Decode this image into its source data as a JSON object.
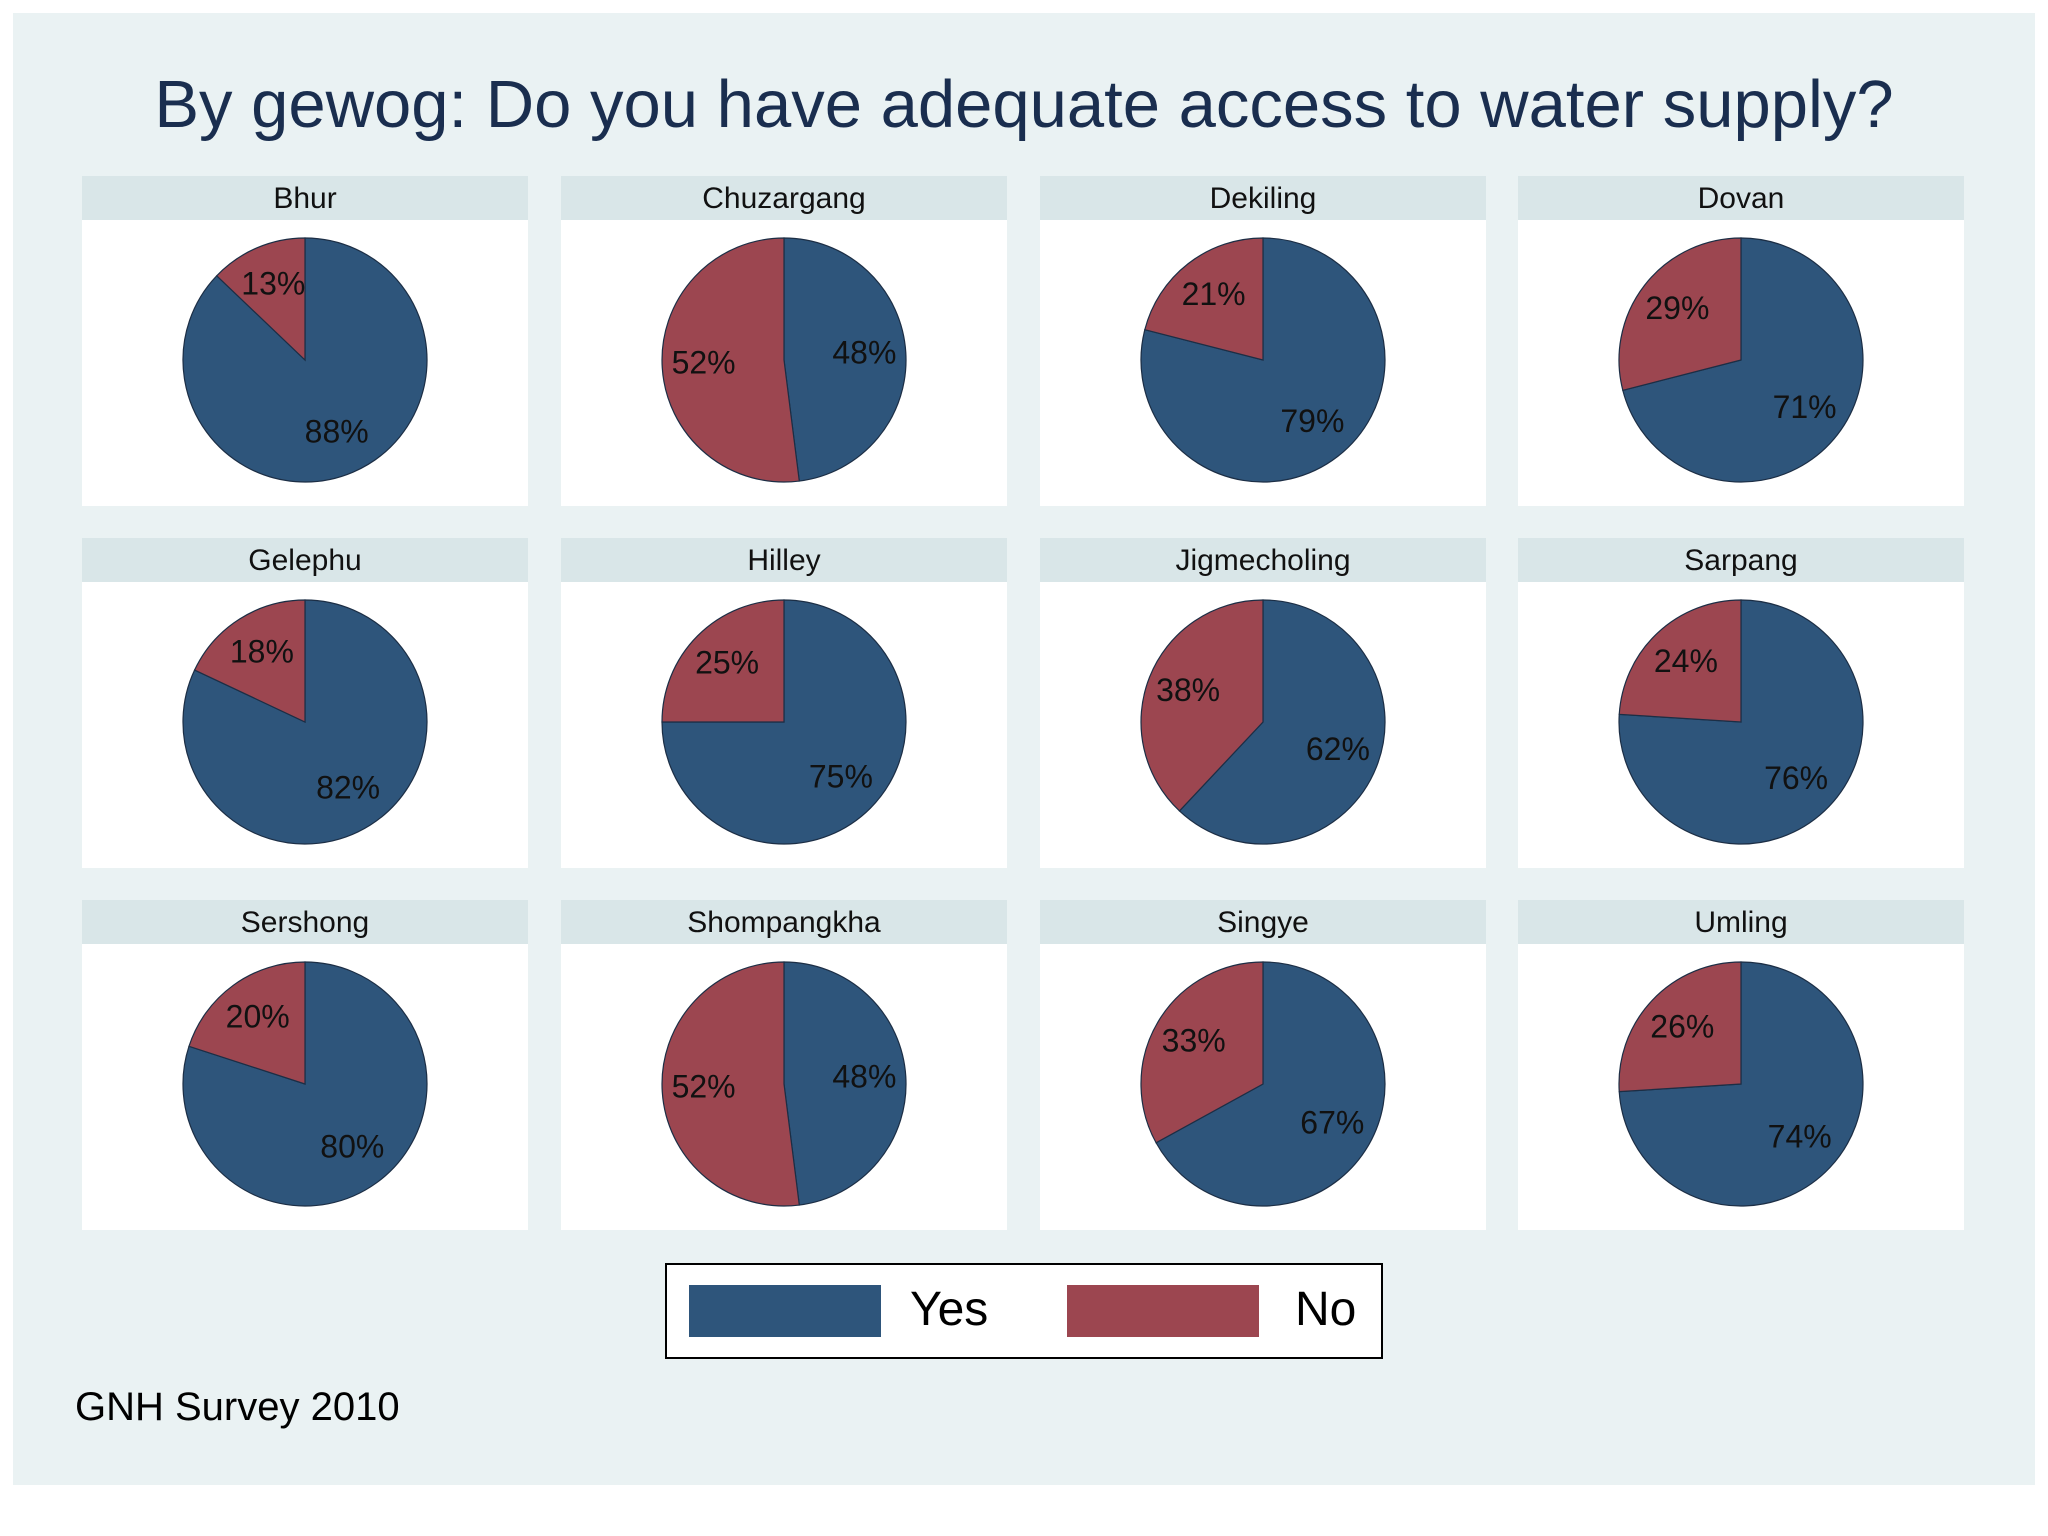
{
  "chart_data": {
    "type": "pie",
    "title": "By gewog: Do you have adequate access to water supply?",
    "series": [
      {
        "name": "Yes",
        "color": "#2e557b"
      },
      {
        "name": "No",
        "color": "#9c4650"
      }
    ],
    "panels": [
      {
        "name": "Bhur",
        "yes": 88,
        "no": 13,
        "yes_label": "88%",
        "no_label": "13%"
      },
      {
        "name": "Chuzargang",
        "yes": 48,
        "no": 52,
        "yes_label": "48%",
        "no_label": "52%"
      },
      {
        "name": "Dekiling",
        "yes": 79,
        "no": 21,
        "yes_label": "79%",
        "no_label": "21%"
      },
      {
        "name": "Dovan",
        "yes": 71,
        "no": 29,
        "yes_label": "71%",
        "no_label": "29%"
      },
      {
        "name": "Gelephu",
        "yes": 82,
        "no": 18,
        "yes_label": "82%",
        "no_label": "18%"
      },
      {
        "name": "Hilley",
        "yes": 75,
        "no": 25,
        "yes_label": "75%",
        "no_label": "25%"
      },
      {
        "name": "Jigmecholing",
        "yes": 62,
        "no": 38,
        "yes_label": "62%",
        "no_label": "38%"
      },
      {
        "name": "Sarpang",
        "yes": 76,
        "no": 24,
        "yes_label": "76%",
        "no_label": "24%"
      },
      {
        "name": "Sershong",
        "yes": 80,
        "no": 20,
        "yes_label": "80%",
        "no_label": "20%"
      },
      {
        "name": "Shompangkha",
        "yes": 48,
        "no": 52,
        "yes_label": "48%",
        "no_label": "52%"
      },
      {
        "name": "Singye",
        "yes": 67,
        "no": 33,
        "yes_label": "67%",
        "no_label": "33%"
      },
      {
        "name": "Umling",
        "yes": 74,
        "no": 26,
        "yes_label": "74%",
        "no_label": "26%"
      }
    ],
    "legend": {
      "position": "bottom",
      "items": [
        "Yes",
        "No"
      ]
    }
  },
  "footnote": "GNH Survey 2010"
}
